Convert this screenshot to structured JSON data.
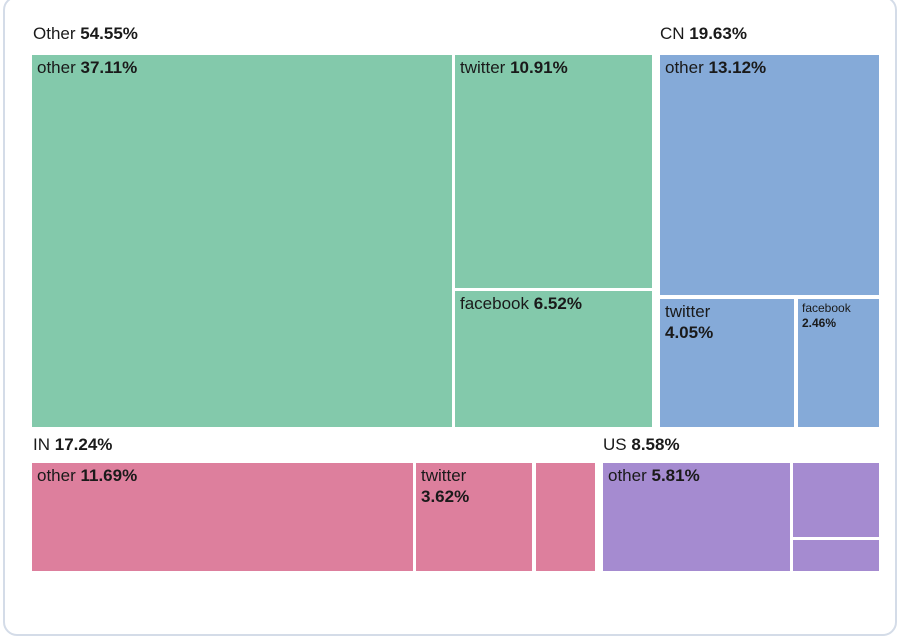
{
  "chart_data": {
    "type": "treemap",
    "title": "",
    "unit": "%",
    "legend": "none",
    "layout": "grouped treemap, group headers above each group, white gaps between cells",
    "groups": [
      {
        "name": "Other",
        "value_pct": 54.55,
        "text": "54.55%",
        "color": "#83C9AB",
        "children": [
          {
            "name": "other",
            "value_pct": 37.11,
            "text": "37.11%",
            "label_shown": true
          },
          {
            "name": "twitter",
            "value_pct": 10.91,
            "text": "10.91%",
            "label_shown": true
          },
          {
            "name": "facebook",
            "value_pct": 6.52,
            "text": "6.52%",
            "label_shown": true
          }
        ]
      },
      {
        "name": "CN",
        "value_pct": 19.63,
        "text": "19.63%",
        "color": "#85AAD8",
        "children": [
          {
            "name": "other",
            "value_pct": 13.12,
            "text": "13.12%",
            "label_shown": true
          },
          {
            "name": "twitter",
            "value_pct": 4.05,
            "text": "4.05%",
            "label_shown": true
          },
          {
            "name": "facebook",
            "value_pct": 2.46,
            "text": "2.46%",
            "label_shown": true
          }
        ]
      },
      {
        "name": "IN",
        "value_pct": 17.24,
        "text": "17.24%",
        "color": "#DD7F9D",
        "children": [
          {
            "name": "other",
            "value_pct": 11.69,
            "text": "11.69%",
            "label_shown": true
          },
          {
            "name": "twitter",
            "value_pct": 3.62,
            "text": "3.62%",
            "label_shown": true
          },
          {
            "name": "",
            "value_pct": 1.93,
            "text": "",
            "label_shown": false,
            "estimated": true
          }
        ]
      },
      {
        "name": "US",
        "value_pct": 8.58,
        "text": "8.58%",
        "color": "#A58BD0",
        "children": [
          {
            "name": "other",
            "value_pct": 5.81,
            "text": "5.81%",
            "label_shown": true
          },
          {
            "name": "",
            "value_pct": 1.95,
            "text": "",
            "label_shown": false,
            "estimated": true
          },
          {
            "name": "",
            "value_pct": 0.82,
            "text": "",
            "label_shown": false,
            "estimated": true
          }
        ]
      }
    ],
    "card": {
      "background": "#ffffff",
      "border_color": "#d4dce8",
      "text_color": "#1a1a1a"
    }
  }
}
